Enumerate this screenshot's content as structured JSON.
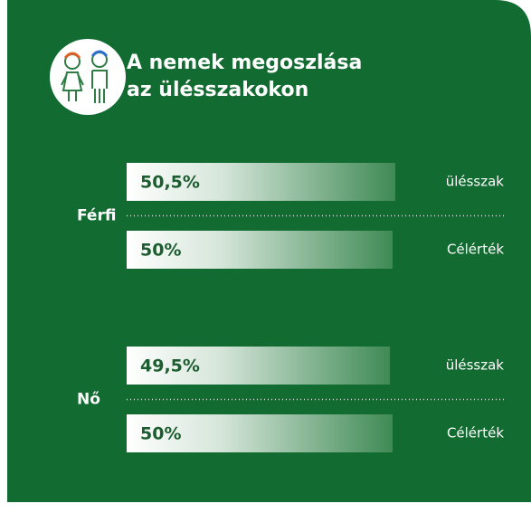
{
  "chart_data": {
    "type": "hbar-groups",
    "title": [
      "A nemek megoszlása",
      "az ülésszakokon"
    ],
    "categories": [
      "Férfi",
      "Nő"
    ],
    "series": [
      {
        "name": "ülésszak",
        "values": [
          50.5,
          49.5
        ],
        "value_labels": [
          "50,5%",
          "49,5%"
        ]
      },
      {
        "name": "Célérték",
        "values": [
          50,
          50
        ],
        "value_labels": [
          "50%",
          "50%"
        ]
      }
    ]
  }
}
